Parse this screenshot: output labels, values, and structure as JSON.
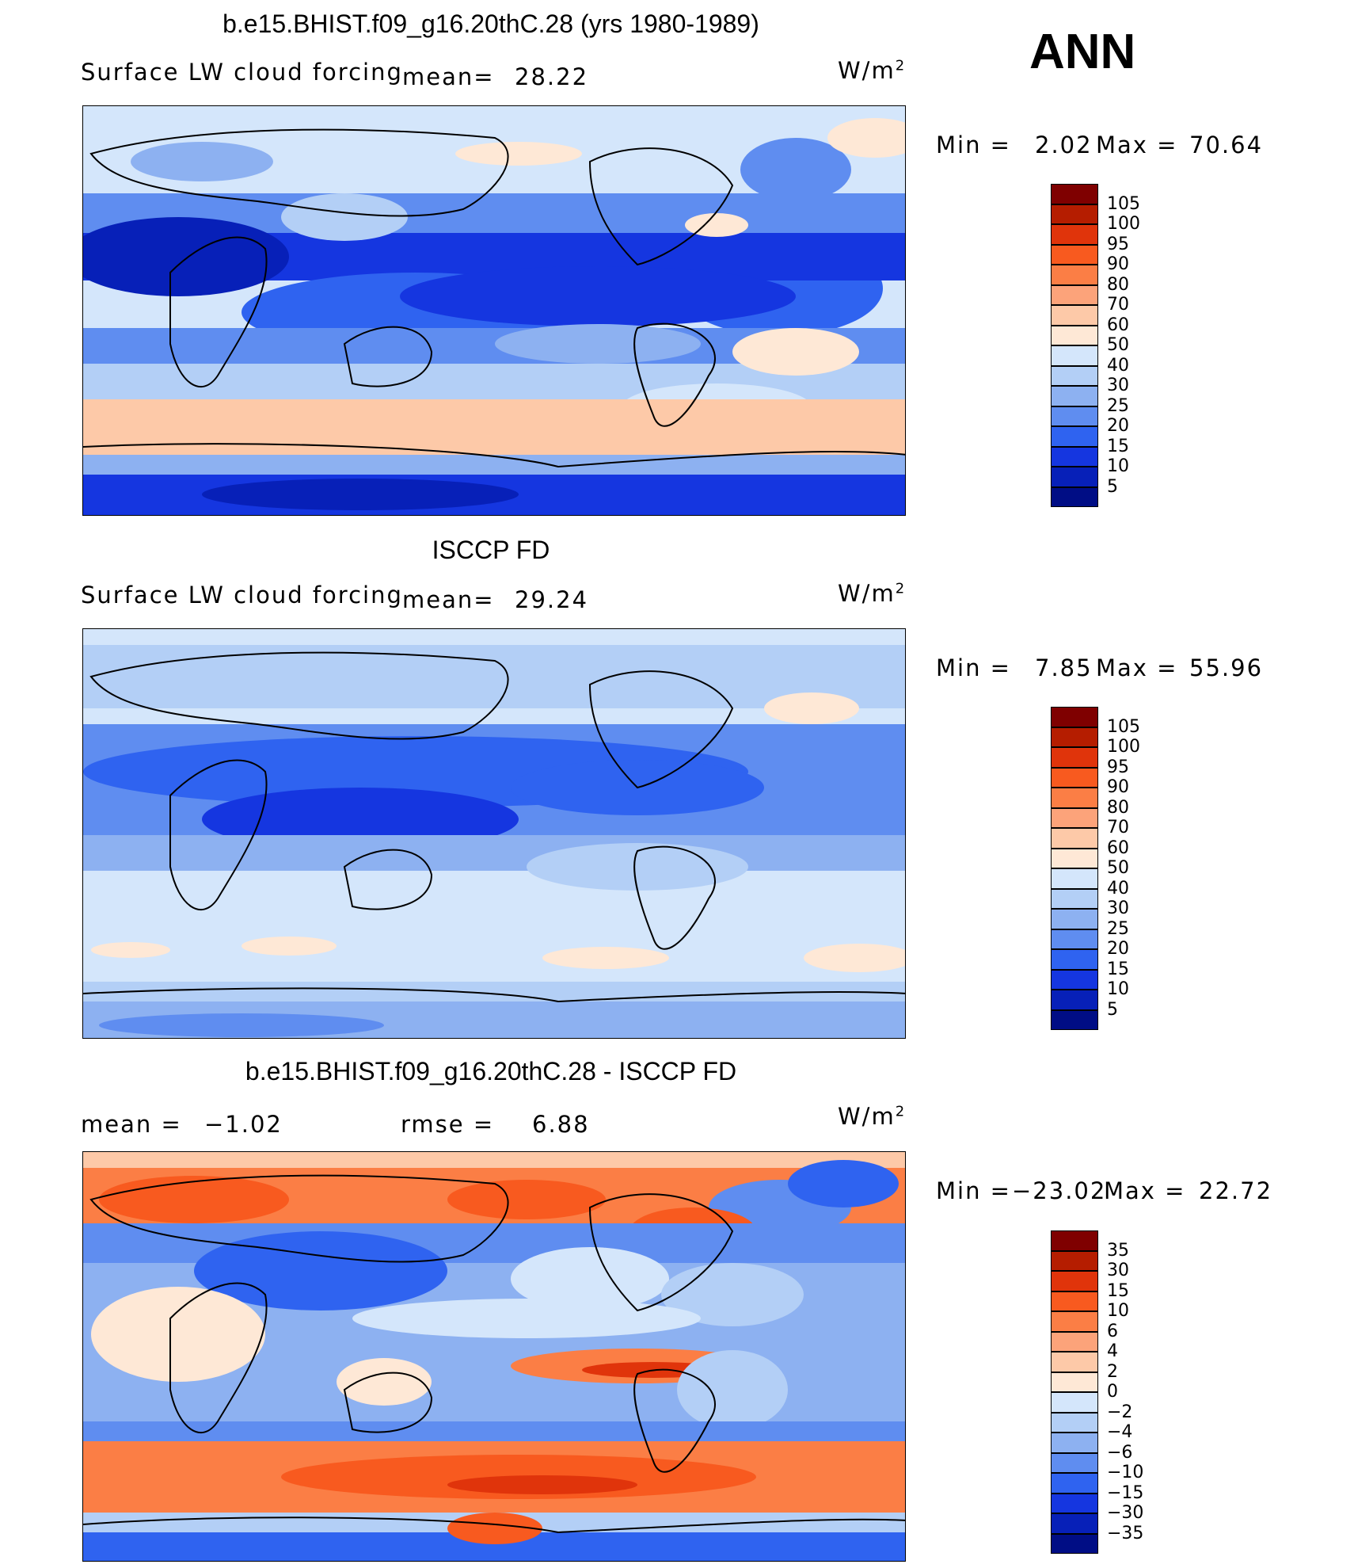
{
  "season": "ANN",
  "panels": [
    {
      "title": "b.e15.BHIST.f09_g16.20thC.28 (yrs 1980-1989)",
      "left_label": "Surface LW cloud forcing",
      "mean_label": "mean=",
      "mean_value": "28.22",
      "units": "W/m",
      "units_exp": "2",
      "min_label": "Min  =",
      "min_value": "2.02",
      "max_label": "Max  =",
      "max_value": "70.64",
      "levels": [
        "105",
        "100",
        "95",
        "90",
        "80",
        "70",
        "60",
        "50",
        "40",
        "30",
        "25",
        "20",
        "15",
        "10",
        "5"
      ],
      "colors": [
        "#7f0000",
        "#b51d00",
        "#e0340b",
        "#f85a1f",
        "#fb7e45",
        "#fca37a",
        "#fdc9a8",
        "#fee8d6",
        "#d4e6fb",
        "#b3cff6",
        "#8db1f1",
        "#5f8df0",
        "#2f63f0",
        "#1536e0",
        "#0720b8",
        "#000d85"
      ]
    },
    {
      "title": "ISCCP FD",
      "left_label": "Surface LW cloud forcing",
      "mean_label": "mean=",
      "mean_value": "29.24",
      "units": "W/m",
      "units_exp": "2",
      "min_label": "Min  =",
      "min_value": "7.85",
      "max_label": "Max  =",
      "max_value": "55.96",
      "levels": [
        "105",
        "100",
        "95",
        "90",
        "80",
        "70",
        "60",
        "50",
        "40",
        "30",
        "25",
        "20",
        "15",
        "10",
        "5"
      ],
      "colors": [
        "#7f0000",
        "#b51d00",
        "#e0340b",
        "#f85a1f",
        "#fb7e45",
        "#fca37a",
        "#fdc9a8",
        "#fee8d6",
        "#d4e6fb",
        "#b3cff6",
        "#8db1f1",
        "#5f8df0",
        "#2f63f0",
        "#1536e0",
        "#0720b8",
        "#000d85"
      ]
    },
    {
      "title": "b.e15.BHIST.f09_g16.20thC.28 - ISCCP FD",
      "mean_label": "mean  =",
      "mean_value": "−1.02",
      "rmse_label": "rmse  =",
      "rmse_value": "6.88",
      "units": "W/m",
      "units_exp": "2",
      "min_label": "Min  =",
      "min_value": "−23.02",
      "max_label": "Max  =",
      "max_value": "22.72",
      "levels": [
        "35",
        "30",
        "15",
        "10",
        "6",
        "4",
        "2",
        "0",
        "−2",
        "−4",
        "−6",
        "−10",
        "−15",
        "−30",
        "−35"
      ],
      "colors": [
        "#7f0000",
        "#b51d00",
        "#e0340b",
        "#f85a1f",
        "#fb7e45",
        "#fca37a",
        "#fdc9a8",
        "#fee8d6",
        "#d4e6fb",
        "#b3cff6",
        "#8db1f1",
        "#5f8df0",
        "#2f63f0",
        "#1536e0",
        "#0720b8",
        "#000d85"
      ]
    }
  ]
}
